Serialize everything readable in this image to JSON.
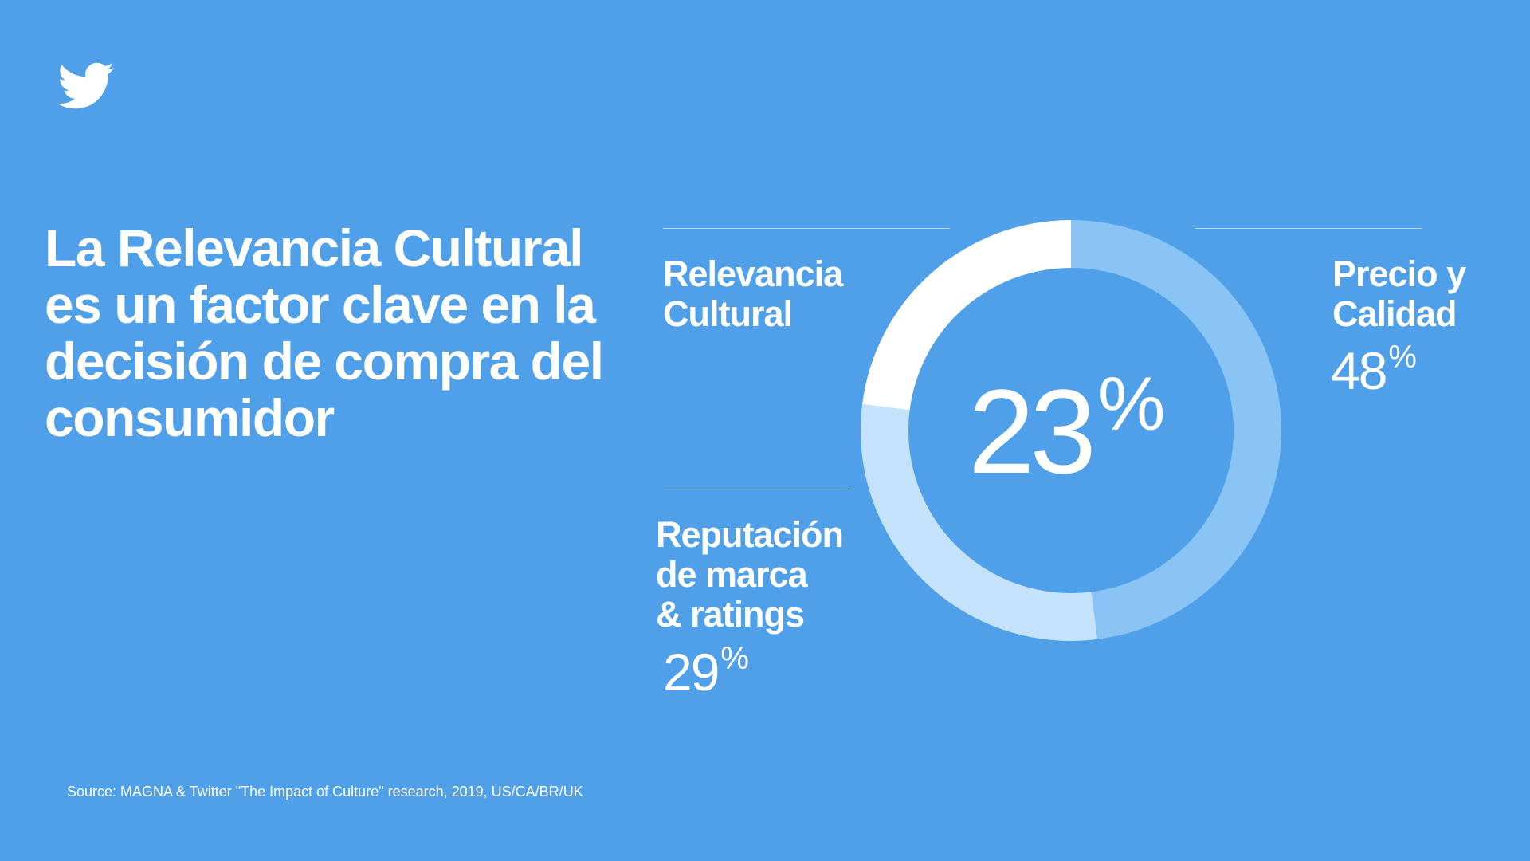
{
  "headline": "La Relevancia Cultural es un factor clave en la decisión de compra del consumidor",
  "source": "Source: MAGNA & Twitter \"The Impact of Culture\" research, 2019, US/CA/BR/UK",
  "logo_icon": "twitter-bird-icon",
  "chart_data": {
    "type": "pie",
    "variant": "donut",
    "title": "",
    "categories": [
      "Relevancia Cultural",
      "Precio y Calidad",
      "Reputación de marca & ratings"
    ],
    "values": [
      23,
      48,
      29
    ],
    "unit": "%",
    "colors": [
      "#ffffff",
      "#8ac4f4",
      "#c4e2fa"
    ],
    "labels": [
      {
        "line1": "Relevancia",
        "line2": "Cultural",
        "line3": "",
        "value_text": "23",
        "sign": "%"
      },
      {
        "line1": "Precio y",
        "line2": "Calidad",
        "line3": "",
        "value_text": "48",
        "sign": "%"
      },
      {
        "line1": "Reputación",
        "line2": "de marca",
        "line3": "& ratings",
        "value_text": "29",
        "sign": "%"
      }
    ]
  },
  "colors": {
    "background": "#4f9fe9",
    "text": "#ffffff"
  }
}
